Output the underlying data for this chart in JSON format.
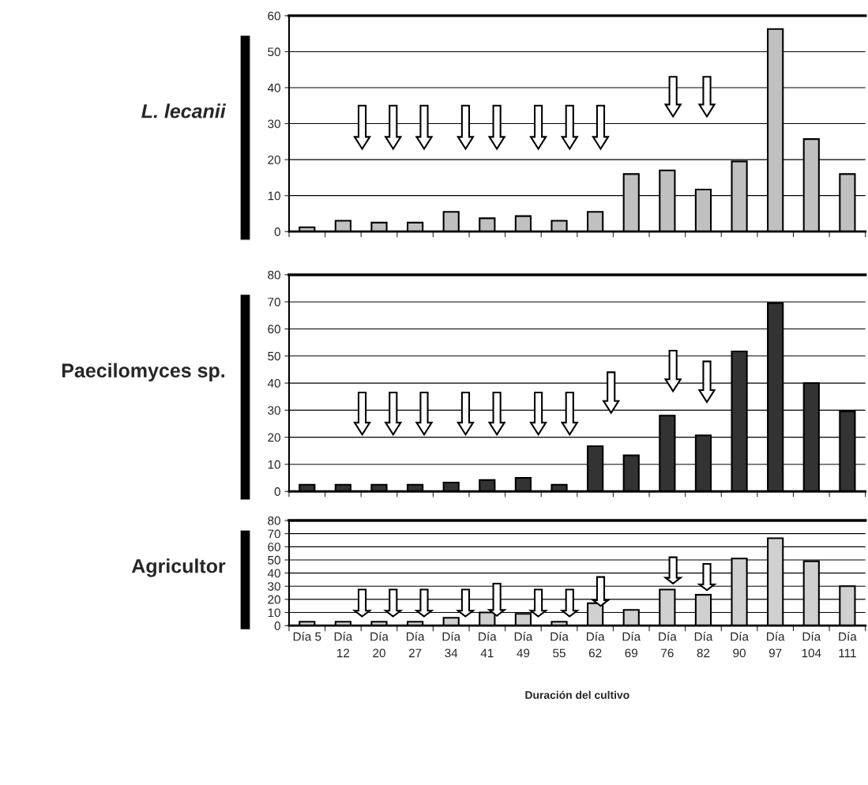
{
  "chart_data": [
    {
      "type": "bar",
      "title": "L. lecanii",
      "values": [
        1.2,
        3,
        2.5,
        2.5,
        5.5,
        3.7,
        4.3,
        3,
        5.5,
        16,
        17,
        11.7,
        19.5,
        56.3,
        25.7,
        16
      ],
      "color": "#c0c0c0",
      "ylim": [
        0,
        60
      ],
      "yticks": [
        0,
        10,
        20,
        30,
        40,
        50,
        60
      ],
      "grid": "y",
      "tick_labels": "y"
    },
    {
      "type": "bar",
      "title": "Paecilomyces sp.",
      "values": [
        2.5,
        2.5,
        2.5,
        2.5,
        3.3,
        4.2,
        5,
        2.5,
        16.7,
        13.3,
        28,
        20.7,
        51.7,
        69.5,
        40,
        29.5
      ],
      "color": "#333333",
      "ylim": [
        0,
        80
      ],
      "yticks": [
        0,
        10,
        20,
        30,
        40,
        50,
        60,
        70,
        80
      ],
      "grid": "y",
      "tick_labels": "y"
    },
    {
      "type": "bar",
      "title": "Agricultor",
      "xlabel": "Duración del cultivo",
      "categories": [
        "Día 5",
        "Día\n12",
        "Día\n20",
        "Día\n27",
        "Día\n34",
        "Día\n41",
        "Día\n49",
        "Día\n55",
        "Día\n62",
        "Día\n69",
        "Día\n76",
        "Día\n82",
        "Día\n90",
        "Día\n97",
        "Día\n104",
        "Día\n111"
      ],
      "values": [
        3,
        3,
        3,
        3,
        6,
        10,
        9,
        3,
        17,
        12,
        27.5,
        23.5,
        51,
        66.5,
        49,
        30
      ],
      "color": "#d0d0d0",
      "ylim": [
        0,
        80
      ],
      "yticks": [
        0,
        10,
        20,
        30,
        40,
        50,
        60,
        70,
        80
      ],
      "grid": "y"
    }
  ]
}
